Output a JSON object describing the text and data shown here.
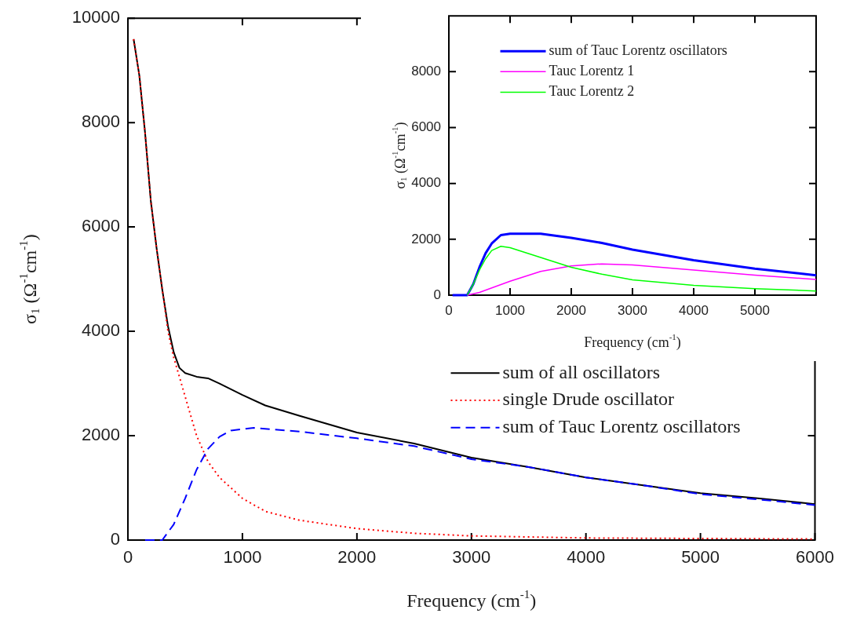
{
  "chart_data": [
    {
      "type": "line",
      "xlabel": "Frequency (cm$^{-1}$)",
      "ylabel": "σ$_{1}$ (Ω$^{-1}$cm$^{-1}$)",
      "xlim": [
        0,
        6000
      ],
      "ylim": [
        0,
        10000
      ],
      "xticks": [
        0,
        1000,
        2000,
        3000,
        4000,
        5000,
        6000
      ],
      "yticks": [
        0,
        2000,
        4000,
        6000,
        8000,
        10000
      ],
      "grid": false,
      "legend": "right",
      "series": [
        {
          "name": "sum of all oscillators",
          "color": "#000000",
          "line_style": "solid",
          "x": [
            50,
            100,
            150,
            200,
            250,
            300,
            350,
            400,
            450,
            500,
            600,
            700,
            800,
            1000,
            1200,
            1500,
            2000,
            2500,
            3000,
            3500,
            4000,
            4500,
            5000,
            5500,
            6000
          ],
          "values": [
            9600,
            8900,
            7800,
            6500,
            5600,
            4800,
            4100,
            3600,
            3300,
            3200,
            3130,
            3100,
            3000,
            2780,
            2580,
            2380,
            2060,
            1850,
            1580,
            1400,
            1200,
            1050,
            900,
            800,
            690
          ]
        },
        {
          "name": "single Drude oscillator",
          "color": "#ff0000",
          "line_style": "dotted",
          "x": [
            50,
            100,
            150,
            200,
            250,
            300,
            350,
            400,
            500,
            600,
            700,
            800,
            1000,
            1200,
            1500,
            2000,
            2500,
            3000,
            4000,
            5000,
            6000
          ],
          "values": [
            9600,
            8900,
            7800,
            6500,
            5600,
            4800,
            4000,
            3500,
            2750,
            2000,
            1500,
            1200,
            800,
            550,
            380,
            220,
            130,
            80,
            40,
            30,
            20
          ]
        },
        {
          "name": "sum of Tauc Lorentz oscillators",
          "color": "#0000ff",
          "line_style": "dashed",
          "x": [
            150,
            300,
            400,
            500,
            600,
            700,
            800,
            900,
            1100,
            1500,
            2000,
            2500,
            3000,
            3500,
            4000,
            4500,
            5000,
            5500,
            6000
          ],
          "values": [
            0,
            0,
            300,
            800,
            1350,
            1750,
            1980,
            2100,
            2150,
            2080,
            1950,
            1800,
            1550,
            1400,
            1200,
            1050,
            880,
            780,
            670
          ]
        }
      ]
    },
    {
      "type": "line",
      "xlabel": "Frequency (cm$^{-1}$)",
      "ylabel": "σ$_{1}$ (Ω$^{-1}$cm$^{-1}$)",
      "xlim": [
        0,
        6000
      ],
      "ylim": [
        0,
        10000
      ],
      "xticks": [
        0,
        1000,
        2000,
        3000,
        4000,
        5000
      ],
      "yticks": [
        0,
        2000,
        4000,
        6000,
        8000
      ],
      "grid": false,
      "legend": "top",
      "series": [
        {
          "name": "sum of Tauc Lorentz oscillators",
          "color": "#0000ff",
          "line_style": "solid",
          "x": [
            60,
            300,
            400,
            500,
            600,
            700,
            850,
            1000,
            1500,
            2000,
            2500,
            3000,
            4000,
            5000,
            6000
          ],
          "values": [
            0,
            0,
            400,
            1000,
            1500,
            1850,
            2150,
            2200,
            2200,
            2050,
            1870,
            1630,
            1250,
            950,
            710
          ]
        },
        {
          "name": "Tauc Lorentz 1",
          "color": "#ff00ff",
          "line_style": "solid",
          "x": [
            300,
            500,
            1000,
            1500,
            2000,
            2500,
            3000,
            4000,
            5000,
            6000
          ],
          "values": [
            0,
            100,
            500,
            850,
            1050,
            1120,
            1080,
            900,
            720,
            560
          ]
        },
        {
          "name": "Tauc Lorentz 2",
          "color": "#00ff00",
          "line_style": "solid",
          "x": [
            300,
            400,
            500,
            600,
            700,
            850,
            1000,
            1500,
            2000,
            2500,
            3000,
            4000,
            5000,
            6000
          ],
          "values": [
            0,
            400,
            900,
            1300,
            1600,
            1750,
            1700,
            1350,
            1000,
            750,
            550,
            350,
            230,
            150
          ]
        }
      ]
    }
  ]
}
